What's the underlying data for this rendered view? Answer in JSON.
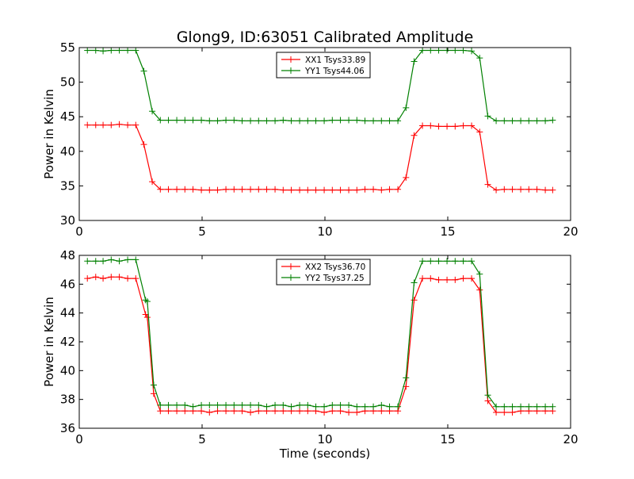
{
  "chart_data": [
    {
      "type": "line",
      "title": "Glong9, ID:63051 Calibrated Amplitude",
      "xlabel": "",
      "ylabel": "Power in Kelvin",
      "xlim": [
        0,
        20
      ],
      "ylim": [
        30,
        55
      ],
      "xticks": [
        0,
        5,
        10,
        15,
        20
      ],
      "yticks": [
        30,
        35,
        40,
        45,
        50,
        55
      ],
      "legend_position": "top-center",
      "grid": false,
      "x": [
        0.33,
        0.67,
        0.97,
        1.3,
        1.63,
        1.97,
        2.3,
        2.63,
        2.97,
        3.3,
        3.63,
        3.97,
        4.3,
        4.63,
        4.97,
        5.3,
        5.63,
        5.97,
        6.3,
        6.63,
        6.97,
        7.3,
        7.63,
        7.97,
        8.3,
        8.63,
        8.97,
        9.3,
        9.63,
        9.97,
        10.3,
        10.63,
        10.97,
        11.3,
        11.63,
        11.97,
        12.3,
        12.63,
        12.97,
        13.3,
        13.63,
        13.97,
        14.3,
        14.63,
        14.97,
        15.3,
        15.63,
        15.97,
        16.3,
        16.63,
        16.97,
        17.3,
        17.63,
        17.97,
        18.3,
        18.63,
        18.97,
        19.27
      ],
      "series": [
        {
          "name": "XX1 Tsys33.89",
          "color": "#ff0000",
          "values": [
            43.8,
            43.8,
            43.8,
            43.8,
            43.9,
            43.8,
            43.8,
            41.0,
            35.6,
            34.5,
            34.5,
            34.5,
            34.5,
            34.5,
            34.4,
            34.4,
            34.4,
            34.5,
            34.5,
            34.5,
            34.5,
            34.5,
            34.5,
            34.5,
            34.4,
            34.4,
            34.4,
            34.4,
            34.4,
            34.4,
            34.4,
            34.4,
            34.4,
            34.4,
            34.5,
            34.5,
            34.4,
            34.5,
            34.5,
            36.2,
            42.3,
            43.7,
            43.7,
            43.6,
            43.6,
            43.6,
            43.7,
            43.7,
            42.8,
            35.2,
            34.4,
            34.5,
            34.5,
            34.5,
            34.5,
            34.5,
            34.4,
            34.4
          ]
        },
        {
          "name": "YY1 Tsys44.06",
          "color": "#008000",
          "values": [
            54.6,
            54.6,
            54.5,
            54.6,
            54.6,
            54.6,
            54.6,
            51.6,
            45.8,
            44.5,
            44.5,
            44.5,
            44.5,
            44.5,
            44.5,
            44.4,
            44.4,
            44.5,
            44.5,
            44.4,
            44.4,
            44.4,
            44.4,
            44.4,
            44.5,
            44.4,
            44.4,
            44.4,
            44.4,
            44.4,
            44.5,
            44.5,
            44.5,
            44.5,
            44.4,
            44.4,
            44.4,
            44.4,
            44.4,
            46.3,
            53.0,
            54.6,
            54.6,
            54.6,
            54.6,
            54.6,
            54.6,
            54.5,
            53.5,
            45.1,
            44.4,
            44.4,
            44.4,
            44.4,
            44.4,
            44.4,
            44.4,
            44.5
          ]
        }
      ]
    },
    {
      "type": "line",
      "title": "",
      "xlabel": "Time (seconds)",
      "ylabel": "Power in Kelvin",
      "xlim": [
        0,
        20
      ],
      "ylim": [
        36,
        48
      ],
      "xticks": [
        0,
        5,
        10,
        15,
        20
      ],
      "yticks": [
        36,
        38,
        40,
        42,
        44,
        46,
        48
      ],
      "legend_position": "top-center",
      "grid": false,
      "x": [
        0.33,
        0.67,
        0.97,
        1.3,
        1.63,
        1.97,
        2.3,
        2.7,
        2.77,
        3.03,
        3.3,
        3.63,
        3.97,
        4.3,
        4.63,
        4.97,
        5.3,
        5.63,
        5.97,
        6.3,
        6.63,
        6.97,
        7.3,
        7.63,
        7.97,
        8.3,
        8.63,
        8.97,
        9.3,
        9.63,
        9.97,
        10.3,
        10.63,
        10.97,
        11.3,
        11.63,
        11.97,
        12.3,
        12.63,
        12.97,
        13.3,
        13.63,
        13.97,
        14.3,
        14.63,
        14.97,
        15.3,
        15.63,
        15.97,
        16.3,
        16.63,
        16.97,
        17.3,
        17.63,
        17.97,
        18.3,
        18.63,
        18.97,
        19.27
      ],
      "series": [
        {
          "name": "XX2 Tsys36.70",
          "color": "#ff0000",
          "values": [
            46.4,
            46.5,
            46.4,
            46.5,
            46.5,
            46.4,
            46.4,
            43.9,
            43.7,
            38.4,
            37.2,
            37.2,
            37.2,
            37.2,
            37.2,
            37.2,
            37.1,
            37.2,
            37.2,
            37.2,
            37.2,
            37.1,
            37.2,
            37.2,
            37.2,
            37.2,
            37.2,
            37.2,
            37.2,
            37.2,
            37.1,
            37.2,
            37.2,
            37.1,
            37.1,
            37.2,
            37.2,
            37.2,
            37.2,
            37.2,
            38.9,
            44.9,
            46.4,
            46.4,
            46.3,
            46.3,
            46.3,
            46.4,
            46.4,
            45.6,
            37.9,
            37.1,
            37.1,
            37.1,
            37.2,
            37.2,
            37.2,
            37.2,
            37.2
          ]
        },
        {
          "name": "YY2 Tsys37.25",
          "color": "#008000",
          "values": [
            47.6,
            47.6,
            47.6,
            47.7,
            47.6,
            47.7,
            47.7,
            44.9,
            44.8,
            39.0,
            37.6,
            37.6,
            37.6,
            37.6,
            37.5,
            37.6,
            37.6,
            37.6,
            37.6,
            37.6,
            37.6,
            37.6,
            37.6,
            37.5,
            37.6,
            37.6,
            37.5,
            37.6,
            37.6,
            37.5,
            37.5,
            37.6,
            37.6,
            37.6,
            37.5,
            37.5,
            37.5,
            37.6,
            37.5,
            37.5,
            39.5,
            46.1,
            47.6,
            47.6,
            47.6,
            47.6,
            47.6,
            47.6,
            47.6,
            46.7,
            38.3,
            37.5,
            37.5,
            37.5,
            37.5,
            37.5,
            37.5,
            37.5,
            37.5
          ]
        }
      ]
    }
  ]
}
